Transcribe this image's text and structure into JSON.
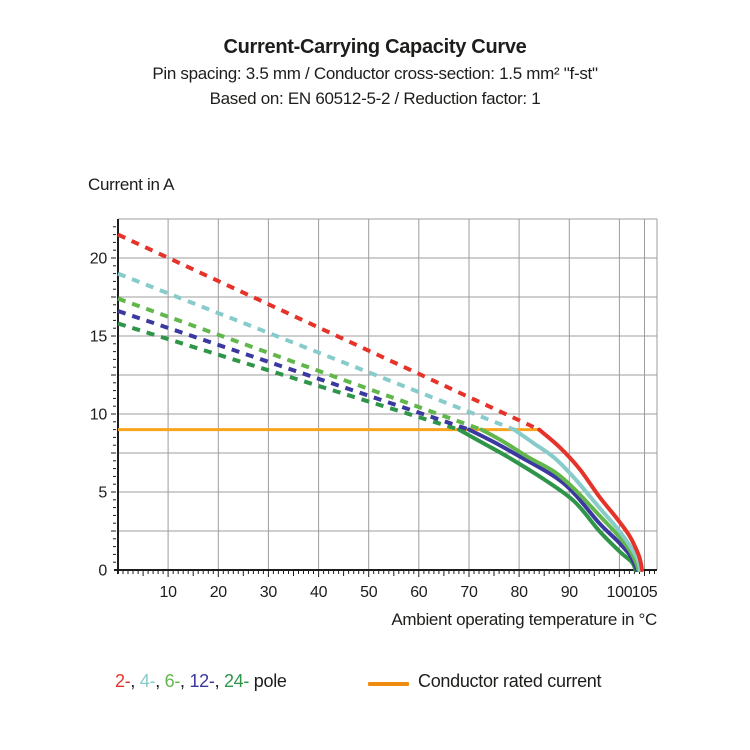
{
  "title": {
    "line1": "Current-Carrying Capacity Curve",
    "line2": "Pin spacing: 3.5 mm / Conductor cross-section: 1.5 mm² \"f-st\"",
    "line3": "Based on: EN 60512-5-2 / Reduction factor: 1"
  },
  "y_axis_title": "Current in A",
  "x_axis_title": "Ambient operating temperature in °C",
  "colors": {
    "text": "#1d1d1b",
    "grid": "#9c9c9c",
    "axis": "#1d1d1b",
    "pole2_red": "#E6332A",
    "pole4_cyan": "#87CCCB",
    "pole6_lightgreen": "#62B74C",
    "pole12_navy": "#3B399F",
    "pole24_darkgreen": "#2F9549",
    "rated_orange": "#F8A41F",
    "legend_swatch_orange": "#EF8C10"
  },
  "chart_data": {
    "type": "line",
    "title": "Current-Carrying Capacity Curve",
    "xlabel": "Ambient operating temperature in °C",
    "ylabel": "Current in A",
    "xlim": [
      0,
      107.5
    ],
    "ylim": [
      0,
      22.5
    ],
    "x_major_gridlines": [
      10,
      20,
      30,
      40,
      50,
      60,
      70,
      80,
      90,
      100,
      105
    ],
    "y_major_gridlines": [
      2.5,
      5,
      7.5,
      10,
      12.5,
      15,
      17.5,
      20,
      22.5
    ],
    "x_tick_labels": [
      "10",
      "20",
      "30",
      "40",
      "50",
      "60",
      "70",
      "80",
      "90",
      "100",
      "105"
    ],
    "x_tick_values": [
      10,
      20,
      30,
      40,
      50,
      60,
      70,
      80,
      90,
      100,
      105
    ],
    "y_tick_labels": [
      "0",
      "5",
      "10",
      "15",
      "20"
    ],
    "y_tick_values": [
      0,
      5,
      10,
      15,
      20
    ],
    "minor_tick_step_x_degC": 1,
    "minor_tick_step_y_A": 0.5,
    "grid": "on",
    "legend_position": "bottom",
    "series": [
      {
        "name": "24-pole",
        "color": "#2F9549",
        "style": "dashed-then-solid",
        "dashed": [
          [
            0,
            15.8
          ],
          [
            68,
            9
          ]
        ],
        "solid": [
          [
            68,
            9
          ],
          [
            73,
            8.1
          ],
          [
            78,
            7.2
          ],
          [
            85,
            5.8
          ],
          [
            91,
            4.4
          ],
          [
            96,
            2.5
          ],
          [
            100,
            1.2
          ],
          [
            102.5,
            0.5
          ],
          [
            103.2,
            0
          ]
        ]
      },
      {
        "name": "12-pole",
        "color": "#3B399F",
        "style": "dashed-then-solid",
        "dashed": [
          [
            0,
            16.6
          ],
          [
            70,
            9
          ]
        ],
        "solid": [
          [
            70,
            9
          ],
          [
            75,
            8.2
          ],
          [
            80,
            7.3
          ],
          [
            87,
            6.0
          ],
          [
            91,
            4.9
          ],
          [
            96,
            3.0
          ],
          [
            99.5,
            1.9
          ],
          [
            102,
            1.0
          ],
          [
            103,
            0.4
          ],
          [
            103.5,
            0
          ]
        ]
      },
      {
        "name": "6-pole",
        "color": "#62B74C",
        "style": "dashed-then-solid",
        "dashed": [
          [
            0,
            17.4
          ],
          [
            72.5,
            9
          ]
        ],
        "solid": [
          [
            72.5,
            9
          ],
          [
            77,
            8.2
          ],
          [
            82,
            7.2
          ],
          [
            87,
            6.3
          ],
          [
            91,
            5.2
          ],
          [
            96,
            3.5
          ],
          [
            99.5,
            2.3
          ],
          [
            102,
            1.3
          ],
          [
            103.3,
            0.5
          ],
          [
            103.8,
            0
          ]
        ]
      },
      {
        "name": "4-pole",
        "color": "#87CCCB",
        "style": "dashed-then-solid",
        "dashed": [
          [
            0,
            19.0
          ],
          [
            79,
            9
          ]
        ],
        "solid": [
          [
            79,
            9
          ],
          [
            83,
            8.1
          ],
          [
            87,
            7.2
          ],
          [
            91,
            5.9
          ],
          [
            96,
            4.0
          ],
          [
            99.5,
            2.7
          ],
          [
            102,
            1.6
          ],
          [
            103.6,
            0.7
          ],
          [
            104.1,
            0
          ]
        ]
      },
      {
        "name": "2-pole",
        "color": "#E6332A",
        "style": "dashed-then-solid",
        "dashed": [
          [
            0,
            21.5
          ],
          [
            84,
            9
          ]
        ],
        "solid": [
          [
            84,
            9
          ],
          [
            88,
            7.9
          ],
          [
            92,
            6.5
          ],
          [
            96,
            4.7
          ],
          [
            99.5,
            3.3
          ],
          [
            102,
            2.2
          ],
          [
            103.8,
            1.0
          ],
          [
            104.3,
            0.4
          ],
          [
            104.5,
            0
          ]
        ]
      },
      {
        "name": "Conductor rated current",
        "color": "#F8A41F",
        "style": "solid-horizontal",
        "points": [
          [
            0,
            9
          ],
          [
            84,
            9
          ]
        ]
      }
    ]
  },
  "legend": {
    "pole_items": [
      {
        "label": "2-",
        "color": "#E6332A"
      },
      {
        "label": "4-",
        "color": "#87CCCB"
      },
      {
        "label": "6-",
        "color": "#62B74C"
      },
      {
        "label": "12-",
        "color": "#3B399F"
      },
      {
        "label": "24-",
        "color": "#2F9549"
      }
    ],
    "pole_separator": ", ",
    "pole_suffix": " pole",
    "rated_label": "Conductor rated current"
  }
}
